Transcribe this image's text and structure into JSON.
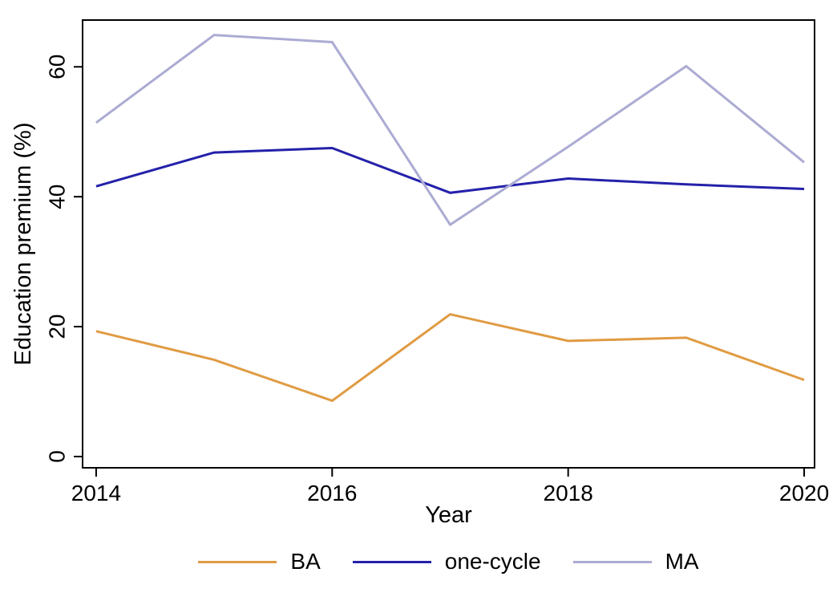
{
  "chart_data": {
    "type": "line",
    "title": "",
    "xlabel": "Year",
    "ylabel": "Education premium (%)",
    "x": [
      2014,
      2015,
      2016,
      2017,
      2018,
      2019,
      2020
    ],
    "x_tick_values": [
      2014,
      2016,
      2018,
      2020
    ],
    "x_tick_labels": [
      "2014",
      "2016",
      "2018",
      "2020"
    ],
    "y_tick_values": [
      0,
      20,
      40,
      60
    ],
    "y_tick_labels": [
      "0",
      "20",
      "40",
      "60"
    ],
    "xlim": [
      2013.885,
      2020.088
    ],
    "ylim": [
      -1.73,
      67.2
    ],
    "grid": false,
    "legend_position": "bottom-center",
    "background_color": "#ffffff",
    "axis_color": "#000000",
    "series": [
      {
        "name": "BA",
        "color": "#E09B43",
        "values": [
          19.3,
          14.9,
          8.6,
          21.9,
          17.8,
          18.3,
          11.8
        ]
      },
      {
        "name": "one-cycle",
        "color": "#2421AA",
        "values": [
          41.6,
          46.8,
          47.5,
          40.6,
          42.8,
          41.9,
          41.2
        ]
      },
      {
        "name": "MA",
        "color": "#ABABD3",
        "values": [
          51.4,
          64.9,
          63.8,
          35.7,
          47.7,
          60.1,
          45.3
        ]
      }
    ]
  }
}
